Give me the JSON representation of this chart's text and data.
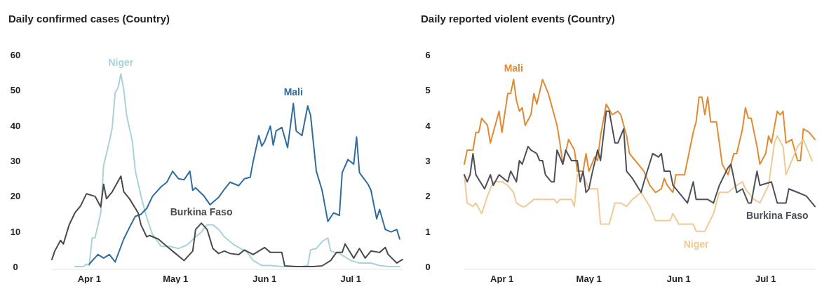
{
  "chart_data": [
    {
      "type": "line",
      "title": "Daily confirmed cases (Country)",
      "xlim": [
        "--03-19",
        "--07-19"
      ],
      "ylim": [
        0,
        60
      ],
      "yticks": [
        0,
        10,
        20,
        30,
        40,
        50,
        60
      ],
      "xticks": [
        {
          "value": "--04-01",
          "label": "Apr 1"
        },
        {
          "value": "--05-01",
          "label": "May 1"
        },
        {
          "value": "--06-01",
          "label": "Jun 1"
        },
        {
          "value": "--07-01",
          "label": "Jul 1"
        }
      ],
      "grid": false,
      "legend": false,
      "series": [
        {
          "name": "Niger",
          "color": "#a9d2d9",
          "x": [
            "--03-27",
            "--03-30",
            "--03-31",
            "--04-01",
            "--04-02",
            "--04-03",
            "--04-05",
            "--04-06",
            "--04-08",
            "--04-09",
            "--04-10",
            "--04-11",
            "--04-12",
            "--04-13",
            "--04-14",
            "--04-16",
            "--04-17",
            "--04-19",
            "--04-21",
            "--04-23",
            "--04-26",
            "--04-29",
            "--05-02",
            "--05-05",
            "--05-08",
            "--05-10",
            "--05-12",
            "--05-14",
            "--05-16",
            "--05-18",
            "--05-21",
            "--05-23",
            "--05-26",
            "--05-28",
            "--05-31",
            "--06-03",
            "--06-07",
            "--06-10",
            "--06-14",
            "--06-16",
            "--06-17",
            "--06-19",
            "--06-21",
            "--06-23",
            "--06-24",
            "--06-27",
            "--07-01",
            "--07-04",
            "--07-08",
            "--07-11",
            "--07-14",
            "--07-18"
          ],
          "values": [
            0,
            0,
            0.7,
            0.3,
            8.1,
            8.1,
            15.2,
            28.7,
            35.4,
            39.4,
            49.2,
            50.6,
            54.6,
            50.2,
            42.8,
            35.4,
            27.3,
            19.9,
            13.8,
            9.1,
            5.7,
            5.7,
            5.1,
            6.1,
            8.4,
            9.8,
            11.8,
            11.8,
            10.5,
            8.4,
            6.4,
            5.4,
            4.0,
            1.7,
            0.3,
            0.3,
            0,
            0,
            0,
            0.3,
            4.7,
            5.1,
            7.1,
            8.1,
            4.4,
            3.7,
            1.7,
            1.0,
            1.0,
            0.3,
            0,
            0
          ]
        },
        {
          "name": "Mali",
          "color": "#2f6c9f",
          "x": [
            "--04-01",
            "--04-04",
            "--04-06",
            "--04-08",
            "--04-10",
            "--04-13",
            "--04-15",
            "--04-17",
            "--04-19",
            "--04-21",
            "--04-23",
            "--04-26",
            "--04-28",
            "--04-30",
            "--05-02",
            "--05-04",
            "--05-06",
            "--05-07",
            "--05-08",
            "--05-11",
            "--05-13",
            "--05-16",
            "--05-18",
            "--05-20",
            "--05-23",
            "--05-25",
            "--05-27",
            "--05-28",
            "--05-30",
            "--05-31",
            "--06-01",
            "--06-03",
            "--06-04",
            "--06-05",
            "--06-07",
            "--06-09",
            "--06-11",
            "--06-12",
            "--06-14",
            "--06-16",
            "--06-17",
            "--06-19",
            "--06-21",
            "--06-23",
            "--06-25",
            "--06-27",
            "--06-28",
            "--06-30",
            "--07-02",
            "--07-03",
            "--07-04",
            "--07-07",
            "--07-08",
            "--07-10",
            "--07-11",
            "--07-13",
            "--07-15",
            "--07-17",
            "--07-18"
          ],
          "values": [
            0.7,
            3.4,
            2.4,
            3.4,
            1.3,
            7.8,
            11.1,
            14.2,
            14.8,
            16.5,
            19.9,
            22.6,
            23.9,
            27.0,
            24.9,
            24.6,
            27.0,
            21.6,
            22.3,
            19.9,
            17.5,
            19.6,
            21.9,
            23.9,
            22.9,
            24.9,
            25.3,
            29.7,
            37.1,
            34.1,
            35.4,
            39.8,
            34.4,
            38.4,
            39.4,
            33.7,
            46.2,
            38.4,
            37.1,
            45.5,
            42.8,
            27.0,
            21.6,
            12.8,
            15.2,
            14.5,
            26.6,
            30.3,
            29.0,
            36.7,
            26.6,
            23.3,
            21.6,
            13.5,
            16.2,
            10.5,
            9.8,
            10.5,
            7.8
          ]
        },
        {
          "name": "Burkina Faso",
          "color": "#4a4a4a",
          "x": [
            "--03-19",
            "--03-20",
            "--03-22",
            "--03-23",
            "--03-25",
            "--03-27",
            "--03-29",
            "--03-31",
            "--04-03",
            "--04-05",
            "--04-06",
            "--04-07",
            "--04-09",
            "--04-12",
            "--04-13",
            "--04-15",
            "--04-18",
            "--04-19",
            "--04-21",
            "--04-22",
            "--04-25",
            "--04-28",
            "--05-01",
            "--05-04",
            "--05-07",
            "--05-08",
            "--05-10",
            "--05-12",
            "--05-14",
            "--05-16",
            "--05-18",
            "--05-20",
            "--05-23",
            "--05-25",
            "--05-28",
            "--06-01",
            "--06-03",
            "--06-07",
            "--06-08",
            "--06-12",
            "--06-15",
            "--06-18",
            "--06-21",
            "--06-24",
            "--06-26",
            "--06-28",
            "--06-29",
            "--07-02",
            "--07-04",
            "--07-06",
            "--07-08",
            "--07-11",
            "--07-13",
            "--07-14",
            "--07-17",
            "--07-19"
          ],
          "values": [
            2,
            4.4,
            7.4,
            6.4,
            11.8,
            15.2,
            17.2,
            20.6,
            19.9,
            16.9,
            23.3,
            19.2,
            21.2,
            25.6,
            21.2,
            19.2,
            15.2,
            11.8,
            8.4,
            8.8,
            7.8,
            5.7,
            3.7,
            1.7,
            4.4,
            10.5,
            12.3,
            10.5,
            5.1,
            3.7,
            4.4,
            3.7,
            3.4,
            4.7,
            3.4,
            5.4,
            4.0,
            4.0,
            0.2,
            0,
            0,
            0,
            0.2,
            1.7,
            4.0,
            4.0,
            6.4,
            2.4,
            5.1,
            2.4,
            4.4,
            4.0,
            5.4,
            3.4,
            1.0,
            2.0
          ]
        }
      ]
    },
    {
      "type": "line",
      "title": "Daily reported violent events (Country)",
      "xlim": [
        "--03-19",
        "--07-18"
      ],
      "ylim": [
        0,
        6
      ],
      "yticks": [
        0,
        1,
        2,
        3,
        4,
        5,
        6
      ],
      "xticks": [
        {
          "value": "--04-01",
          "label": "Apr 1"
        },
        {
          "value": "--05-01",
          "label": "May 1"
        },
        {
          "value": "--06-01",
          "label": "Jun 1"
        },
        {
          "value": "--07-01",
          "label": "Jul 1"
        }
      ],
      "grid": false,
      "legend": false,
      "series": [
        {
          "name": "Mali",
          "color": "#e08b33",
          "x": [
            "--03-19",
            "--03-20",
            "--03-22",
            "--03-23",
            "--03-24",
            "--03-25",
            "--03-27",
            "--03-28",
            "--03-29",
            "--03-31",
            "--04-01",
            "--04-03",
            "--04-04",
            "--04-05",
            "--04-06",
            "--04-07",
            "--04-08",
            "--04-09",
            "--04-11",
            "--04-12",
            "--04-13",
            "--04-15",
            "--04-17",
            "--04-19",
            "--04-20",
            "--04-21",
            "--04-22",
            "--04-24",
            "--04-26",
            "--04-27",
            "--04-29",
            "--04-30",
            "--05-01",
            "--05-03",
            "--05-04",
            "--05-05",
            "--05-07",
            "--05-09",
            "--05-11",
            "--05-12",
            "--05-14",
            "--05-15",
            "--05-17",
            "--05-20",
            "--05-22",
            "--05-24",
            "--05-26",
            "--05-27",
            "--05-28",
            "--05-30",
            "--05-31",
            "--06-03",
            "--06-04",
            "--06-06",
            "--06-07",
            "--06-08",
            "--06-09",
            "--06-10",
            "--06-11",
            "--06-12",
            "--06-14",
            "--06-16",
            "--06-18",
            "--06-20",
            "--06-21",
            "--06-23",
            "--06-24",
            "--06-25",
            "--06-26",
            "--06-28",
            "--06-29",
            "--07-01",
            "--07-02",
            "--07-03",
            "--07-05",
            "--07-06",
            "--07-07",
            "--07-08",
            "--07-10",
            "--07-12",
            "--07-13",
            "--07-14",
            "--07-16",
            "--07-18"
          ],
          "values": [
            2.9,
            3.3,
            3.3,
            3.8,
            3.8,
            4.2,
            4.0,
            3.5,
            3.8,
            4.4,
            3.8,
            4.9,
            4.9,
            5.3,
            4.7,
            4.4,
            4.5,
            4.0,
            4.3,
            4.9,
            4.6,
            5.3,
            4.9,
            4.3,
            4.0,
            3.5,
            2.9,
            3.6,
            3.3,
            2.7,
            2.7,
            3.2,
            2.7,
            3.1,
            3.0,
            3.7,
            4.6,
            4.3,
            4.4,
            4.3,
            3.7,
            3.2,
            3.0,
            2.7,
            2.3,
            2.1,
            2.2,
            2.5,
            2.3,
            2.1,
            2.6,
            2.6,
            3.0,
            3.8,
            4.1,
            4.8,
            4.8,
            4.3,
            4.8,
            4.1,
            4.1,
            2.9,
            2.6,
            3.2,
            3.2,
            3.9,
            4.5,
            4.2,
            4.2,
            3.4,
            2.9,
            3.2,
            3.7,
            3.5,
            4.4,
            4.3,
            4.4,
            3.5,
            3.6,
            3.0,
            3.0,
            3.9,
            3.8,
            3.6
          ]
        },
        {
          "name": "Niger",
          "color": "#f1c994",
          "x": [
            "--03-19",
            "--03-20",
            "--03-22",
            "--03-23",
            "--03-25",
            "--03-27",
            "--03-29",
            "--04-01",
            "--04-03",
            "--04-05",
            "--04-06",
            "--04-08",
            "--04-09",
            "--04-12",
            "--04-16",
            "--04-19",
            "--04-20",
            "--04-21",
            "--04-25",
            "--04-26",
            "--04-27",
            "--04-29",
            "--05-01",
            "--05-04",
            "--05-05",
            "--05-08",
            "--05-10",
            "--05-12",
            "--05-14",
            "--05-16",
            "--05-19",
            "--05-22",
            "--05-24",
            "--05-26",
            "--05-29",
            "--05-30",
            "--06-01",
            "--06-06",
            "--06-07",
            "--06-10",
            "--06-13",
            "--06-15",
            "--06-18",
            "--06-21",
            "--06-23",
            "--06-24",
            "--06-27",
            "--06-29",
            "--07-02",
            "--07-04",
            "--07-05",
            "--07-07",
            "--07-08",
            "--07-10",
            "--07-12",
            "--07-14",
            "--07-15",
            "--07-17"
          ],
          "values": [
            2.6,
            1.8,
            1.7,
            1.8,
            1.5,
            2.0,
            2.4,
            2.4,
            2.3,
            2.1,
            1.8,
            1.7,
            1.7,
            1.9,
            1.9,
            1.9,
            1.8,
            1.9,
            1.9,
            1.7,
            2.6,
            2.6,
            2.2,
            2.2,
            1.2,
            1.2,
            1.8,
            1.8,
            1.7,
            1.9,
            2.1,
            1.7,
            1.3,
            1.3,
            1.3,
            1.5,
            1.2,
            1.2,
            1.0,
            1.0,
            1.5,
            2.1,
            2.1,
            2.3,
            2.4,
            2.2,
            1.9,
            1.8,
            2.3,
            3.5,
            3.7,
            3.4,
            2.6,
            3.0,
            3.4,
            3.6,
            3.4,
            3.0
          ]
        },
        {
          "name": "Burkina Faso",
          "color": "#4b505b",
          "x": [
            "--03-19",
            "--03-20",
            "--03-21",
            "--03-22",
            "--03-23",
            "--03-26",
            "--03-28",
            "--03-29",
            "--03-31",
            "--04-03",
            "--04-04",
            "--04-06",
            "--04-07",
            "--04-08",
            "--04-10",
            "--04-11",
            "--04-13",
            "--04-14",
            "--04-15",
            "--04-16",
            "--04-18",
            "--04-19",
            "--04-20",
            "--04-22",
            "--04-23",
            "--04-25",
            "--04-27",
            "--04-28",
            "--04-29",
            "--04-30",
            "--05-01",
            "--05-02",
            "--05-04",
            "--05-05",
            "--05-07",
            "--05-08",
            "--05-10",
            "--05-11",
            "--05-13",
            "--05-14",
            "--05-16",
            "--05-19",
            "--05-20",
            "--05-23",
            "--05-25",
            "--05-26",
            "--05-27",
            "--05-29",
            "--05-30",
            "--06-04",
            "--06-06",
            "--06-07",
            "--06-09",
            "--06-11",
            "--06-13",
            "--06-15",
            "--06-18",
            "--06-19",
            "--06-21",
            "--06-23",
            "--06-25",
            "--06-26",
            "--06-28",
            "--06-29",
            "--07-03",
            "--07-05",
            "--07-08",
            "--07-09",
            "--07-12",
            "--07-15",
            "--07-16",
            "--07-18"
          ],
          "values": [
            2.6,
            2.4,
            2.6,
            3.2,
            2.6,
            2.2,
            2.6,
            2.3,
            2.6,
            2.4,
            2.7,
            2.4,
            3.0,
            2.9,
            3.4,
            3.3,
            3.2,
            3.0,
            3.0,
            2.6,
            2.4,
            2.4,
            3.3,
            2.9,
            3.3,
            3.0,
            3.0,
            2.4,
            2.7,
            2.1,
            2.2,
            2.6,
            3.3,
            3.0,
            4.4,
            4.4,
            3.5,
            3.5,
            3.9,
            2.7,
            2.5,
            2.1,
            2.4,
            3.2,
            3.1,
            3.2,
            2.7,
            2.7,
            2.3,
            1.8,
            2.4,
            1.9,
            1.9,
            1.9,
            1.8,
            2.3,
            2.8,
            2.9,
            2.1,
            2.2,
            1.8,
            1.8,
            2.7,
            2.3,
            2.4,
            1.8,
            1.8,
            2.2,
            2.1,
            2.0,
            1.9,
            1.7
          ]
        }
      ]
    }
  ]
}
